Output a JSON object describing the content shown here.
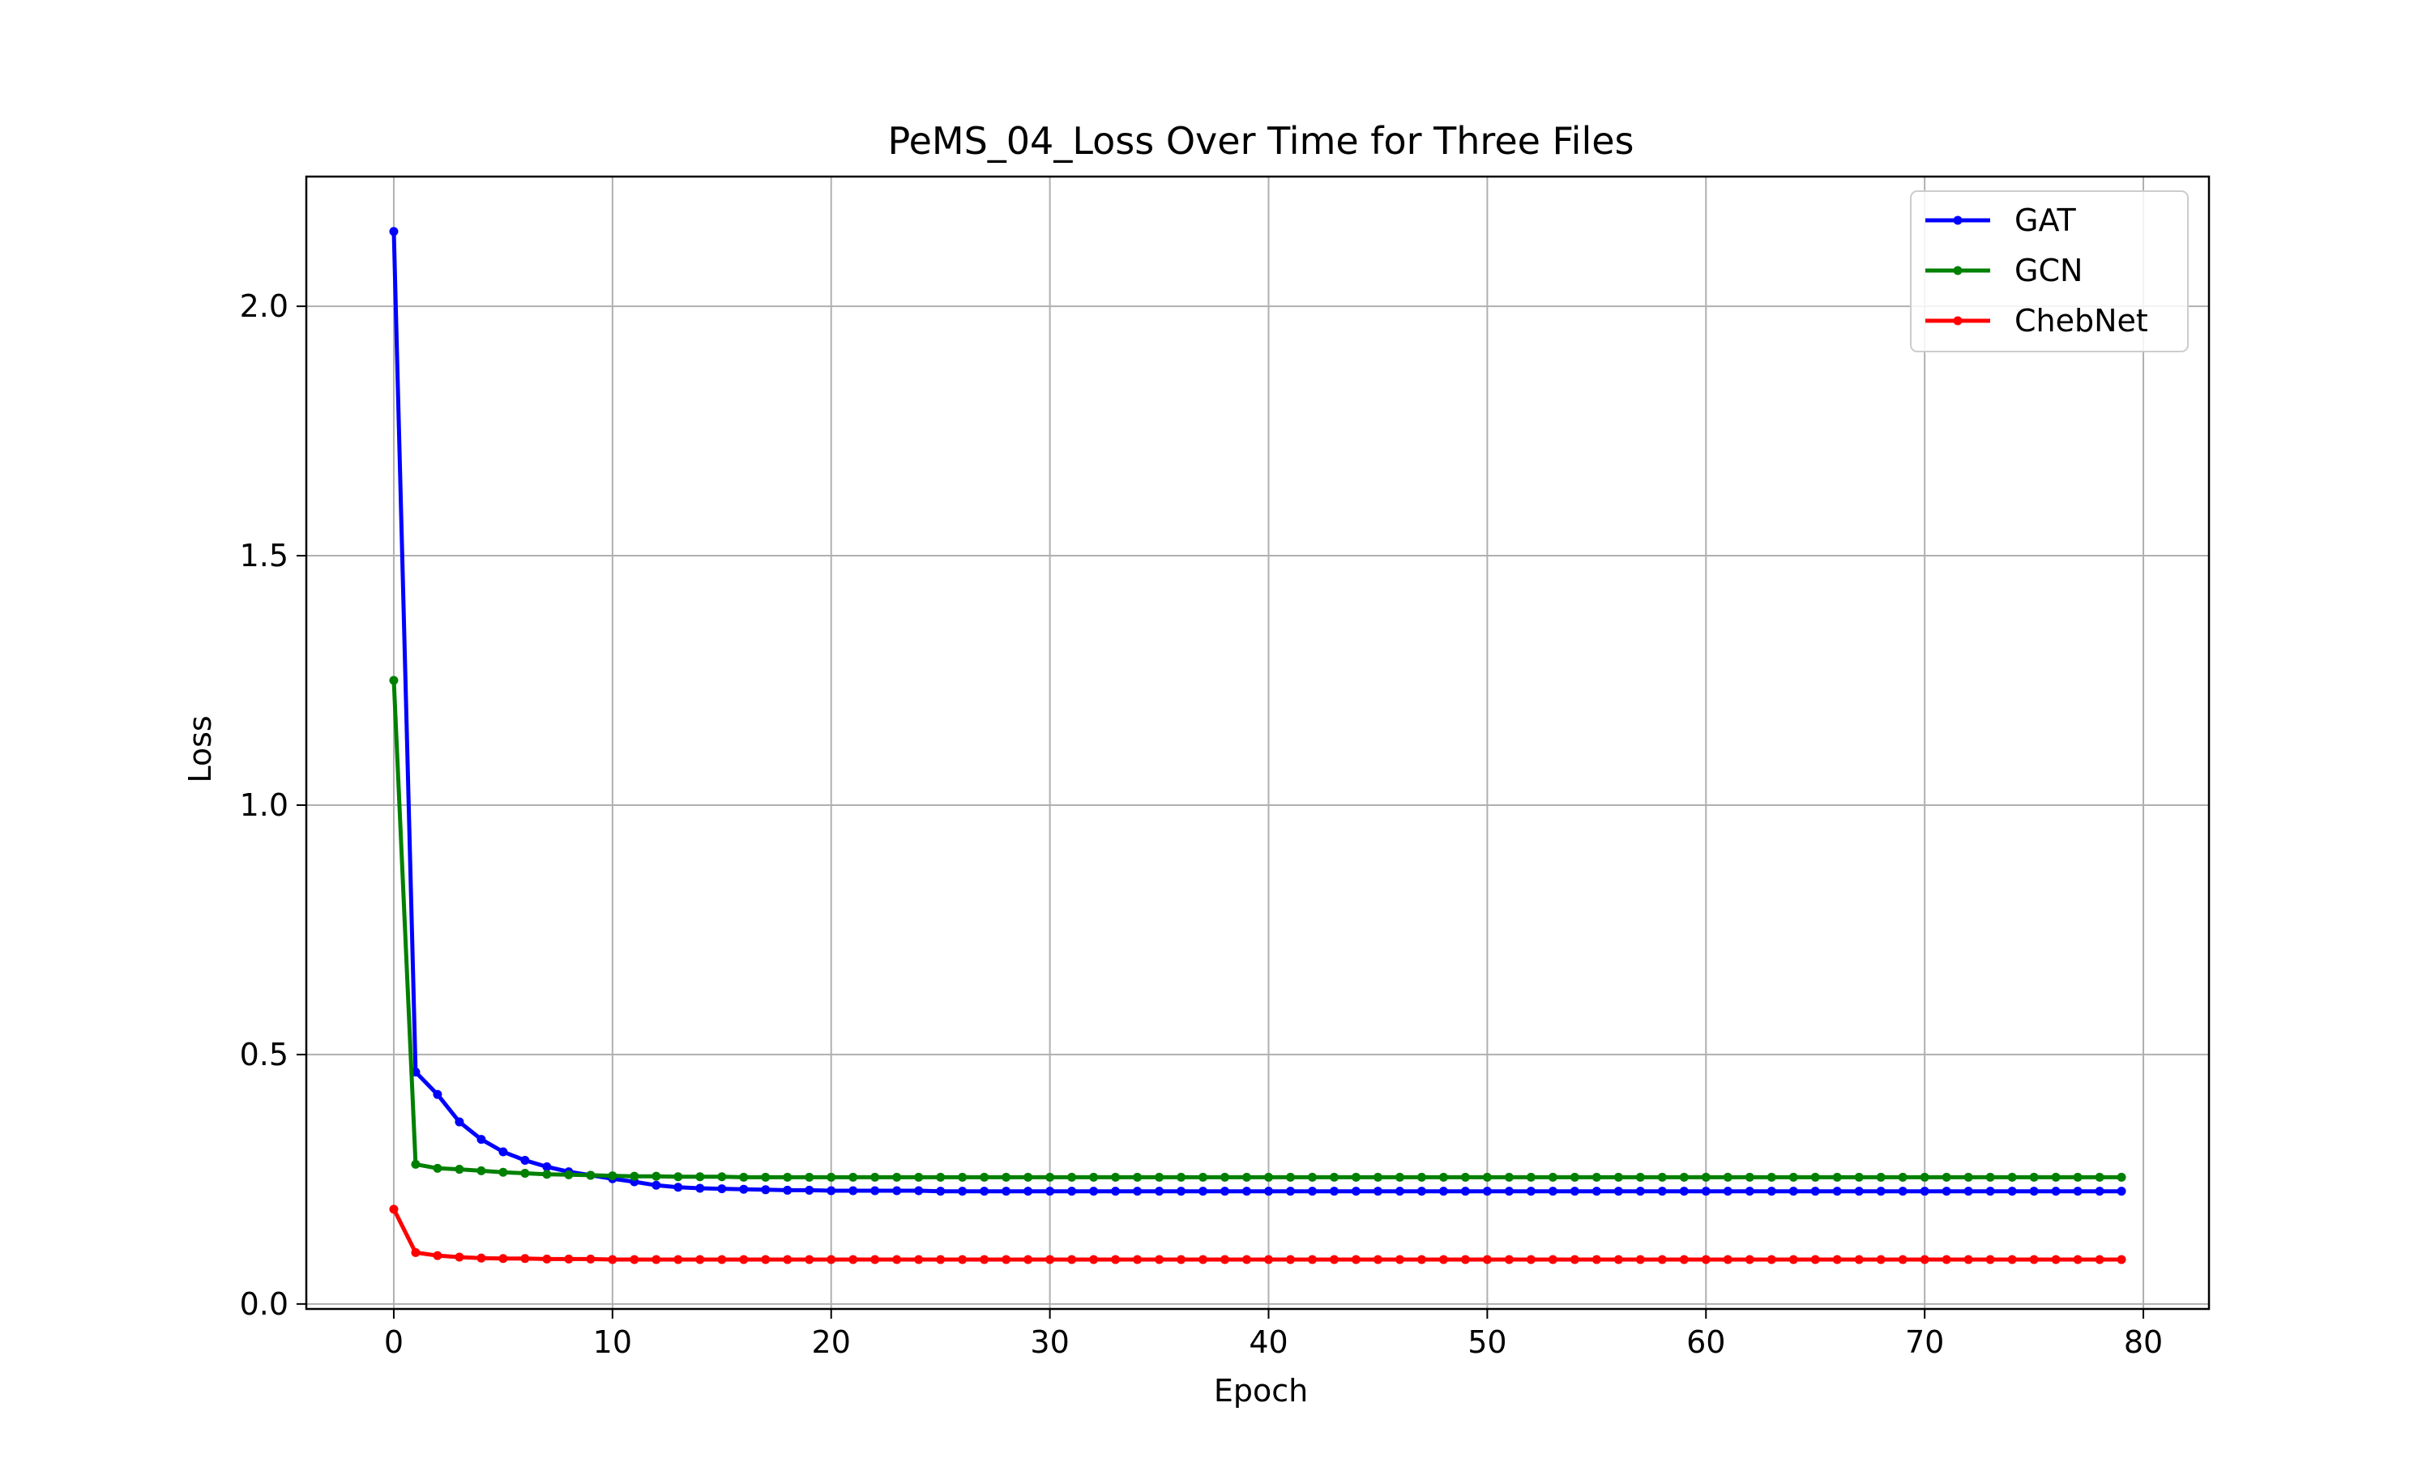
{
  "chart_data": {
    "type": "line",
    "title": "PeMS_04_Loss Over Time for Three Files",
    "xlabel": "Epoch",
    "ylabel": "Loss",
    "xlim": [
      -4,
      83
    ],
    "ylim": [
      -0.01,
      2.26
    ],
    "xticks": [
      0,
      10,
      20,
      30,
      40,
      50,
      60,
      70,
      80
    ],
    "yticks": [
      0.0,
      0.5,
      1.0,
      1.5,
      2.0
    ],
    "xtick_labels": [
      "0",
      "10",
      "20",
      "30",
      "40",
      "50",
      "60",
      "70",
      "80"
    ],
    "ytick_labels": [
      "0.0",
      "0.5",
      "1.0",
      "1.5",
      "2.0"
    ],
    "grid": true,
    "legend_position": "top-right",
    "x": [
      0,
      1,
      2,
      3,
      4,
      5,
      6,
      7,
      8,
      9,
      10,
      11,
      12,
      13,
      14,
      15,
      16,
      17,
      18,
      19,
      20,
      21,
      22,
      23,
      24,
      25,
      26,
      27,
      28,
      29,
      30,
      31,
      32,
      33,
      34,
      35,
      36,
      37,
      38,
      39,
      40,
      41,
      42,
      43,
      44,
      45,
      46,
      47,
      48,
      49,
      50,
      51,
      52,
      53,
      54,
      55,
      56,
      57,
      58,
      59,
      60,
      61,
      62,
      63,
      64,
      65,
      66,
      67,
      68,
      69,
      70,
      71,
      72,
      73,
      74,
      75,
      76,
      77,
      78,
      79
    ],
    "series": [
      {
        "name": "GAT",
        "color": "#0000ff",
        "values": [
          2.15,
          0.465,
          0.42,
          0.365,
          0.33,
          0.305,
          0.288,
          0.275,
          0.265,
          0.258,
          0.251,
          0.245,
          0.238,
          0.234,
          0.232,
          0.231,
          0.23,
          0.229,
          0.228,
          0.228,
          0.227,
          0.227,
          0.227,
          0.227,
          0.227,
          0.226,
          0.226,
          0.226,
          0.226,
          0.226,
          0.226,
          0.226,
          0.226,
          0.226,
          0.226,
          0.226,
          0.226,
          0.226,
          0.226,
          0.226,
          0.226,
          0.226,
          0.226,
          0.226,
          0.226,
          0.226,
          0.226,
          0.226,
          0.226,
          0.226,
          0.226,
          0.226,
          0.226,
          0.226,
          0.226,
          0.226,
          0.226,
          0.226,
          0.226,
          0.226,
          0.226,
          0.226,
          0.226,
          0.226,
          0.226,
          0.226,
          0.226,
          0.226,
          0.226,
          0.226,
          0.226,
          0.226,
          0.226,
          0.226,
          0.226,
          0.226,
          0.226,
          0.226,
          0.226,
          0.226
        ]
      },
      {
        "name": "GCN",
        "color": "#008000",
        "values": [
          1.25,
          0.28,
          0.272,
          0.27,
          0.267,
          0.264,
          0.262,
          0.26,
          0.259,
          0.258,
          0.257,
          0.256,
          0.256,
          0.255,
          0.255,
          0.255,
          0.254,
          0.254,
          0.254,
          0.254,
          0.254,
          0.254,
          0.254,
          0.254,
          0.254,
          0.254,
          0.254,
          0.254,
          0.254,
          0.254,
          0.254,
          0.254,
          0.254,
          0.254,
          0.254,
          0.254,
          0.254,
          0.254,
          0.254,
          0.254,
          0.254,
          0.254,
          0.254,
          0.254,
          0.254,
          0.254,
          0.254,
          0.254,
          0.254,
          0.254,
          0.254,
          0.254,
          0.254,
          0.254,
          0.254,
          0.254,
          0.254,
          0.254,
          0.254,
          0.254,
          0.254,
          0.254,
          0.254,
          0.254,
          0.254,
          0.254,
          0.254,
          0.254,
          0.254,
          0.254,
          0.254,
          0.254,
          0.254,
          0.254,
          0.254,
          0.254,
          0.254,
          0.254,
          0.254,
          0.254
        ]
      },
      {
        "name": "ChebNet",
        "color": "#ff0000",
        "values": [
          0.19,
          0.103,
          0.097,
          0.094,
          0.092,
          0.091,
          0.091,
          0.09,
          0.09,
          0.09,
          0.089,
          0.089,
          0.089,
          0.089,
          0.089,
          0.089,
          0.089,
          0.089,
          0.089,
          0.089,
          0.089,
          0.089,
          0.089,
          0.089,
          0.089,
          0.089,
          0.089,
          0.089,
          0.089,
          0.089,
          0.089,
          0.089,
          0.089,
          0.089,
          0.089,
          0.089,
          0.089,
          0.089,
          0.089,
          0.089,
          0.089,
          0.089,
          0.089,
          0.089,
          0.089,
          0.089,
          0.089,
          0.089,
          0.089,
          0.089,
          0.089,
          0.089,
          0.089,
          0.089,
          0.089,
          0.089,
          0.089,
          0.089,
          0.089,
          0.089,
          0.089,
          0.089,
          0.089,
          0.089,
          0.089,
          0.089,
          0.089,
          0.089,
          0.089,
          0.089,
          0.089,
          0.089,
          0.089,
          0.089,
          0.089,
          0.089,
          0.089,
          0.089,
          0.089,
          0.089
        ]
      }
    ]
  }
}
